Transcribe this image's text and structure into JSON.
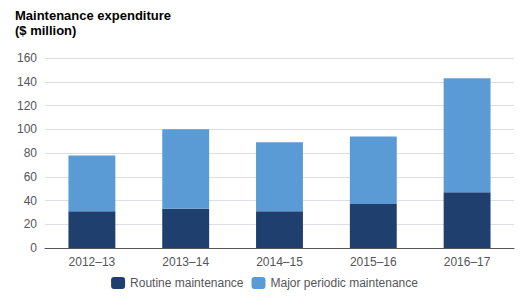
{
  "chart_data": {
    "type": "bar",
    "title": "Maintenance expenditure",
    "subtitle": "($ million)",
    "categories": [
      "2012–13",
      "2013–14",
      "2014–15",
      "2015–16",
      "2016–17"
    ],
    "series": [
      {
        "name": "Routine maintenance",
        "color": "#1f3f6e",
        "values": [
          31,
          33,
          31,
          37,
          47
        ]
      },
      {
        "name": "Major periodic maintenance",
        "color": "#5b9bd5",
        "values": [
          47,
          67,
          58,
          57,
          96
        ]
      }
    ],
    "stacked": true,
    "ylim": [
      0,
      160
    ],
    "yticks": [
      0,
      20,
      40,
      60,
      80,
      100,
      120,
      140,
      160
    ],
    "grid": true,
    "legend": "bottom"
  }
}
